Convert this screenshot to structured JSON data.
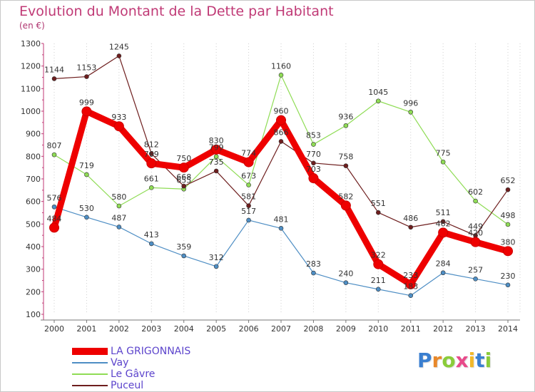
{
  "header": {
    "title": "Evolution du Montant de la Dette par Habitant",
    "subtitle": "(en €)"
  },
  "logo": {
    "text": "Proxiti",
    "colors": [
      "#3a7fd0",
      "#e8882a",
      "#8acc3a",
      "#e84a8a",
      "#f2b82a",
      "#3a7fd0",
      "#8acc3a"
    ]
  },
  "chart_data": {
    "type": "line",
    "title": "Evolution du Montant de la Dette par Habitant",
    "subtitle": "(en €)",
    "xlabel": "",
    "ylabel": "",
    "x": [
      "2000",
      "2001",
      "2002",
      "2003",
      "2004",
      "2005",
      "2006",
      "2007",
      "2008",
      "2009",
      "2010",
      "2011",
      "2012",
      "2013",
      "2014"
    ],
    "ylim": [
      100,
      1300
    ],
    "yticks": [
      "100",
      "200",
      "300",
      "400",
      "500",
      "600",
      "700",
      "800",
      "900",
      "1000",
      "1100",
      "1200",
      "1300"
    ],
    "grid": "vertical dotted",
    "legend": "bottom-left",
    "series": [
      {
        "name": "LA GRIGONNAIS",
        "color": "#ee0000",
        "values": [
          484,
          999,
          933,
          769,
          750,
          830,
          774,
          960,
          703,
          582,
          322,
          233,
          462,
          420,
          380
        ],
        "labels": [
          "484",
          "999",
          "933",
          "769",
          "750",
          "830",
          "774",
          "960",
          "703",
          "582",
          "322",
          "233",
          "462",
          "420",
          "380"
        ]
      },
      {
        "name": "Vay",
        "color": "#4e8ec4",
        "values": [
          576,
          530,
          487,
          413,
          359,
          312,
          517,
          481,
          283,
          240,
          211,
          183,
          284,
          257,
          230
        ],
        "labels": [
          "576",
          "530",
          "487",
          "413",
          "359",
          "312",
          "517",
          "481",
          "283",
          "240",
          "211",
          "183",
          "284",
          "257",
          "230"
        ]
      },
      {
        "name": "Le Gâvre",
        "color": "#8fdc55",
        "values": [
          807,
          719,
          580,
          661,
          655,
          799,
          673,
          1160,
          853,
          936,
          1045,
          996,
          775,
          602,
          498
        ],
        "labels": [
          "807",
          "719",
          "580",
          "661",
          "655",
          "799",
          "673",
          "1160",
          "853",
          "936",
          "1045",
          "996",
          "775",
          "602",
          "498"
        ]
      },
      {
        "name": "Puceul",
        "color": "#6e1e1e",
        "values": [
          1144,
          1153,
          1245,
          812,
          668,
          735,
          581,
          866,
          770,
          758,
          551,
          486,
          511,
          449,
          652
        ],
        "labels": [
          "1144",
          "1153",
          "1245",
          "812",
          "668",
          "735",
          "581",
          "866",
          "770",
          "758",
          "551",
          "486",
          "511",
          "449",
          "652"
        ]
      }
    ]
  }
}
